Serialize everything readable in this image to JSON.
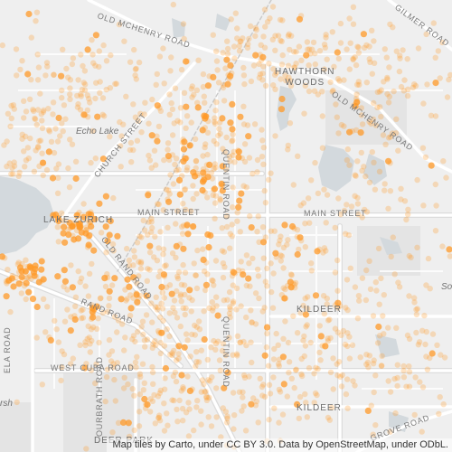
{
  "map": {
    "dot_color": "#ff9a28",
    "dot_opacity_light": 0.28,
    "dot_opacity_strong": 0.75,
    "water_color": "#d4dade",
    "road_color": "#ffffff",
    "park_color": "#e6e6e6"
  },
  "labels": {
    "old_mchenry_road_nw": "OLD MCHENRY ROAD",
    "gilmer_road": "GILMER ROAD",
    "hawthorn_woods_line1": "HAWTHORN",
    "hawthorn_woods_line2": "WOODS",
    "old_mchenry_road_ne": "OLD MCHENRY ROAD",
    "echo_lake": "Echo Lake",
    "church_street": "CHURCH STREET",
    "quentin_road_north": "QUENTIN ROAD",
    "main_street_west": "MAIN STREET",
    "main_street_east": "MAIN STREET",
    "lake_zurich": "LAKE ZURICH",
    "old_rand_road": "OLD RAND ROAD",
    "rand_road": "RAND ROAD",
    "quentin_road_south": "QUENTIN ROAD",
    "kildeer_north": "KILDEER",
    "kildeer_south": "KILDEER",
    "west_cuba_road": "WEST CUBA ROAD",
    "ela_road": "ELA ROAD",
    "ourbrath_road": "OURBRATH ROAD",
    "grove_road": "GROVE ROAD",
    "deer_park": "DEER PARK",
    "partial_place_left": "rsh",
    "partial_place_right": "So"
  },
  "attribution": "Map tiles by Carto, under CC BY 3.0. Data by OpenStreetMap, under ODbL."
}
